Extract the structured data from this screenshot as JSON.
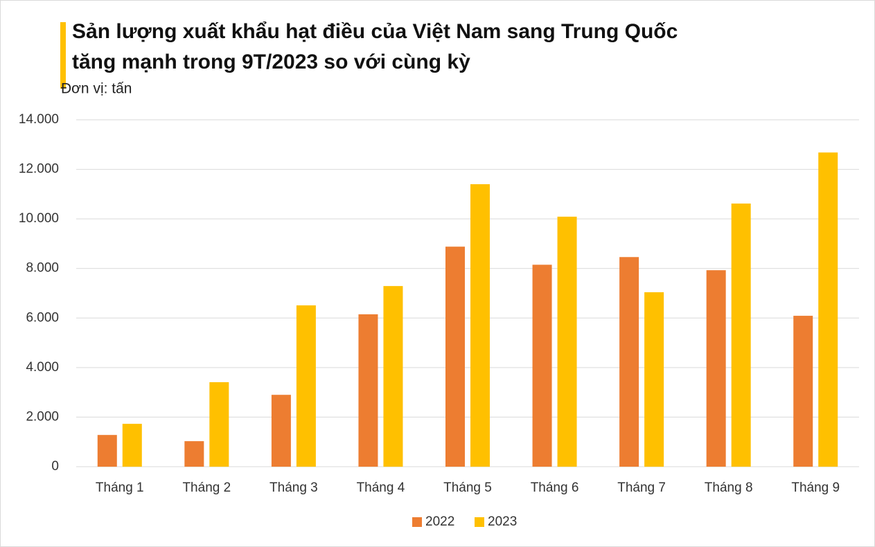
{
  "chart_data": {
    "type": "bar",
    "title": [
      "Sản lượng xuất khẩu hạt điều của Việt Nam sang Trung Quốc",
      "tăng mạnh trong 9T/2023 so với cùng kỳ"
    ],
    "subtitle": "Đơn vị: tấn",
    "categories": [
      "Tháng 1",
      "Tháng 2",
      "Tháng 3",
      "Tháng 4",
      "Tháng 5",
      "Tháng 6",
      "Tháng 7",
      "Tháng 8",
      "Tháng 9"
    ],
    "series": [
      {
        "name": "2022",
        "color": "#ED7D31",
        "values": [
          1280,
          1030,
          2900,
          6150,
          8880,
          8150,
          8460,
          7930,
          6090
        ]
      },
      {
        "name": "2023",
        "color": "#FFC000",
        "values": [
          1730,
          3410,
          6510,
          7290,
          11400,
          10090,
          7040,
          10620,
          12680
        ]
      }
    ],
    "ylim": [
      0,
      14000
    ],
    "yticks": [
      0,
      {
        "value": 2000,
        "label": "2.000"
      },
      {
        "value": 4000,
        "label": "4.000"
      },
      {
        "value": 6000,
        "label": "6.000"
      },
      {
        "value": 8000,
        "label": "8.000"
      },
      {
        "value": 10000,
        "label": "10.000"
      },
      {
        "value": 12000,
        "label": "12.000"
      },
      {
        "value": 14000,
        "label": "14.000"
      }
    ],
    "grid": true,
    "legend": "bottom"
  }
}
